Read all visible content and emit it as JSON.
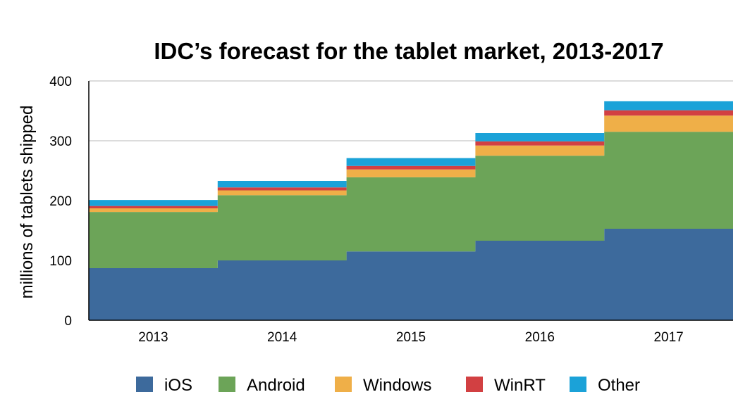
{
  "chart_data": {
    "type": "area",
    "stacked": true,
    "step": true,
    "title": "IDC’s forecast for the tablet market, 2013-2017",
    "xlabel": "",
    "ylabel": "millions of tablets shipped",
    "categories": [
      "2013",
      "2014",
      "2015",
      "2016",
      "2017"
    ],
    "ylim": [
      0,
      400
    ],
    "yticks": [
      0,
      100,
      200,
      300,
      400
    ],
    "grid": true,
    "legend_position": "bottom",
    "series": [
      {
        "name": "iOS",
        "color": "#3d6a9c",
        "values": [
          87,
          100,
          115,
          133,
          153
        ]
      },
      {
        "name": "Android",
        "color": "#6ca458",
        "values": [
          94,
          109,
          124,
          142,
          162
        ]
      },
      {
        "name": "Windows",
        "color": "#efaf48",
        "values": [
          6,
          8,
          13,
          17,
          27
        ]
      },
      {
        "name": "WinRT",
        "color": "#d24042",
        "values": [
          4,
          5,
          6,
          7,
          9
        ]
      },
      {
        "name": "Other",
        "color": "#1ba2d8",
        "values": [
          10,
          11,
          13,
          14,
          15
        ]
      }
    ]
  }
}
